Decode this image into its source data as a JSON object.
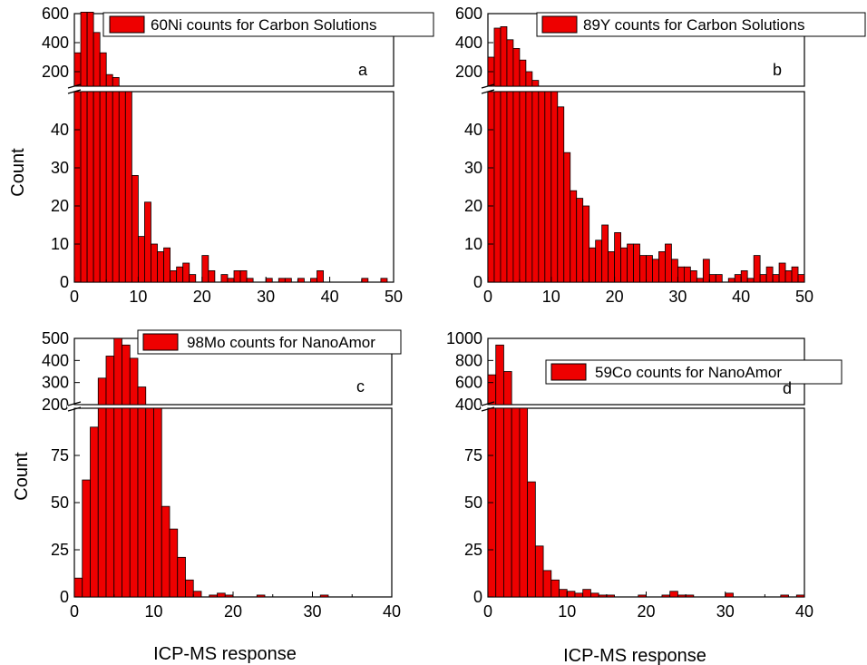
{
  "colors": {
    "bar_fill": "#ee0000",
    "bar_stroke": "#000000"
  },
  "chart_data": [
    {
      "type": "bar",
      "panel_label": "a",
      "legend": "60Ni counts for Carbon Solutions",
      "xlabel": "",
      "ylabel": "Count",
      "xlim": [
        0,
        50
      ],
      "bin_width": 1,
      "xticks": [
        0,
        10,
        20,
        30,
        40,
        50
      ],
      "lower_ylim": [
        0,
        50
      ],
      "lower_yticks": [
        0,
        10,
        20,
        30,
        40
      ],
      "upper_ylim": [
        100,
        600
      ],
      "upper_yticks": [
        200,
        400,
        600
      ],
      "counts": [
        330,
        610,
        610,
        470,
        330,
        180,
        160,
        50,
        50,
        28,
        12,
        21,
        10,
        8,
        9,
        3,
        4,
        5,
        2,
        0,
        7,
        3,
        0,
        2,
        1,
        3,
        3,
        1,
        0,
        0,
        1,
        0,
        1,
        1,
        0,
        1,
        0,
        1,
        3,
        0,
        0,
        0,
        0,
        0,
        0,
        1,
        0,
        0,
        1,
        0
      ]
    },
    {
      "type": "bar",
      "panel_label": "b",
      "legend": "89Y counts for Carbon Solutions",
      "xlabel": "",
      "ylabel": "",
      "xlim": [
        0,
        50
      ],
      "bin_width": 1,
      "xticks": [
        0,
        10,
        20,
        30,
        40,
        50
      ],
      "lower_ylim": [
        0,
        50
      ],
      "lower_yticks": [
        0,
        10,
        20,
        30,
        40
      ],
      "upper_ylim": [
        100,
        600
      ],
      "upper_yticks": [
        200,
        400,
        600
      ],
      "counts": [
        300,
        500,
        510,
        420,
        360,
        280,
        200,
        140,
        100,
        50,
        50,
        46,
        34,
        24,
        22,
        20,
        9,
        11,
        15,
        8,
        13,
        9,
        10,
        10,
        7,
        7,
        6,
        8,
        10,
        6,
        4,
        4,
        3,
        1,
        6,
        2,
        2,
        0,
        1,
        2,
        3,
        1,
        7,
        2,
        4,
        2,
        5,
        3,
        4,
        2
      ]
    },
    {
      "type": "bar",
      "panel_label": "c",
      "legend": "98Mo counts for NanoAmor",
      "xlabel": "ICP-MS response",
      "ylabel": "Count",
      "xlim": [
        0,
        40
      ],
      "bin_width": 1,
      "xticks": [
        0,
        10,
        20,
        30,
        40
      ],
      "lower_ylim": [
        0,
        100
      ],
      "lower_yticks": [
        0,
        25,
        50,
        75
      ],
      "upper_ylim": [
        200,
        500
      ],
      "upper_yticks": [
        200,
        300,
        400,
        500
      ],
      "counts": [
        10,
        62,
        90,
        320,
        420,
        500,
        470,
        410,
        280,
        100,
        100,
        48,
        36,
        21,
        9,
        3,
        0,
        1,
        2,
        1,
        0,
        0,
        0,
        1,
        0,
        0,
        0,
        0,
        0,
        0,
        0,
        1,
        0,
        0,
        0,
        0,
        0,
        0,
        0,
        0
      ]
    },
    {
      "type": "bar",
      "panel_label": "d",
      "legend": "59Co counts for NanoAmor",
      "xlabel": "ICP-MS response",
      "ylabel": "",
      "xlim": [
        0,
        40
      ],
      "bin_width": 1,
      "xticks": [
        0,
        10,
        20,
        30,
        40
      ],
      "lower_ylim": [
        0,
        100
      ],
      "lower_yticks": [
        0,
        25,
        50,
        75
      ],
      "upper_ylim": [
        400,
        1000
      ],
      "upper_yticks": [
        400,
        600,
        800,
        1000
      ],
      "counts": [
        670,
        940,
        700,
        100,
        100,
        61,
        27,
        14,
        9,
        4,
        3,
        2,
        4,
        2,
        1,
        1,
        0,
        0,
        0,
        1,
        0,
        0,
        1,
        3,
        1,
        1,
        0,
        0,
        0,
        0,
        2,
        0,
        0,
        0,
        0,
        0,
        0,
        1,
        0,
        1
      ]
    }
  ]
}
